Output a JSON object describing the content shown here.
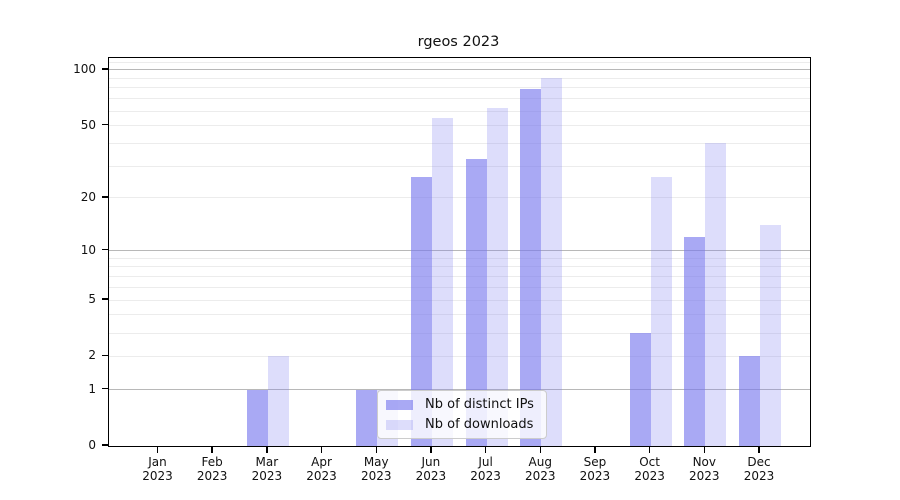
{
  "chart": {
    "title": "rgeos 2023",
    "legend": {
      "items": [
        {
          "label": "Nb of distinct IPs"
        },
        {
          "label": "Nb of downloads"
        }
      ]
    }
  },
  "chart_data": {
    "type": "bar",
    "title": "rgeos 2023",
    "categories": [
      "Jan 2023",
      "Feb 2023",
      "Mar 2023",
      "Apr 2023",
      "May 2023",
      "Jun 2023",
      "Jul 2023",
      "Aug 2023",
      "Sep 2023",
      "Oct 2023",
      "Nov 2023",
      "Dec 2023"
    ],
    "category_month_line": [
      "Jan",
      "Feb",
      "Mar",
      "Apr",
      "May",
      "Jun",
      "Jul",
      "Aug",
      "Sep",
      "Oct",
      "Nov",
      "Dec"
    ],
    "category_year_line": "2023",
    "series": [
      {
        "name": "Nb of distinct IPs",
        "color": "rgba(120,120,238,0.64)",
        "values": [
          0,
          0,
          1,
          0,
          1,
          26,
          33,
          79,
          0,
          3,
          12,
          2
        ]
      },
      {
        "name": "Nb of downloads",
        "color": "rgba(120,120,238,0.25)",
        "values": [
          0,
          0,
          2,
          0,
          1,
          55,
          62,
          90,
          0,
          26,
          40,
          14
        ]
      }
    ],
    "xlabel": "",
    "ylabel": "",
    "y_axis": {
      "scale": "log10(1+x)",
      "tick_values": [
        0,
        1,
        2,
        5,
        10,
        20,
        50,
        100
      ],
      "tick_labels": [
        "0",
        "1",
        "2",
        "5",
        "10",
        "20",
        "50",
        "100"
      ],
      "range": [
        0,
        116
      ],
      "grid_minor_values": [
        2,
        3,
        4,
        5,
        6,
        7,
        8,
        9,
        20,
        30,
        40,
        50,
        60,
        70,
        80,
        90,
        110
      ],
      "grid_major_values": [
        1,
        10,
        100
      ]
    },
    "grid": "horizontal-only",
    "legend_position": "inside-bottom-center-left"
  }
}
